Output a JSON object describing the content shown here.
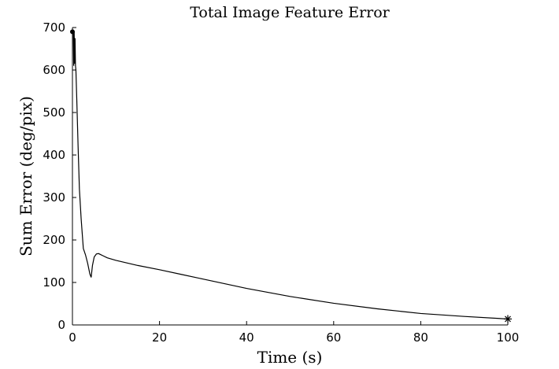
{
  "chart_data": {
    "type": "line",
    "title": "Total Image Feature Error",
    "xlabel": "Time (s)",
    "ylabel": "Sum Error (deg/pix)",
    "xlim": [
      0,
      100
    ],
    "ylim": [
      0,
      700
    ],
    "xticks": [
      0,
      20,
      40,
      60,
      80,
      100
    ],
    "yticks": [
      0,
      100,
      200,
      300,
      400,
      500,
      600,
      700
    ],
    "grid": false,
    "legend": "none",
    "line_color": "#000000",
    "start_marker": "filled-circle",
    "end_marker": "asterisk",
    "series": [
      {
        "x": [
          0,
          0.2,
          0.3,
          0.4,
          0.5,
          0.6,
          0.7,
          0.8,
          1.0,
          1.3,
          1.6,
          2.0,
          2.5,
          3.0,
          3.5,
          4.0,
          4.3,
          4.6,
          5.0,
          5.5,
          6.0,
          7,
          8,
          10,
          15,
          20,
          25,
          30,
          40,
          50,
          60,
          70,
          80,
          90,
          100
        ],
        "y": [
          690,
          695,
          610,
          690,
          615,
          675,
          610,
          600,
          530,
          420,
          320,
          250,
          180,
          165,
          145,
          120,
          112,
          140,
          160,
          167,
          168,
          163,
          158,
          152,
          140,
          130,
          119,
          108,
          86,
          67,
          51,
          38,
          27,
          20,
          14
        ]
      }
    ]
  }
}
